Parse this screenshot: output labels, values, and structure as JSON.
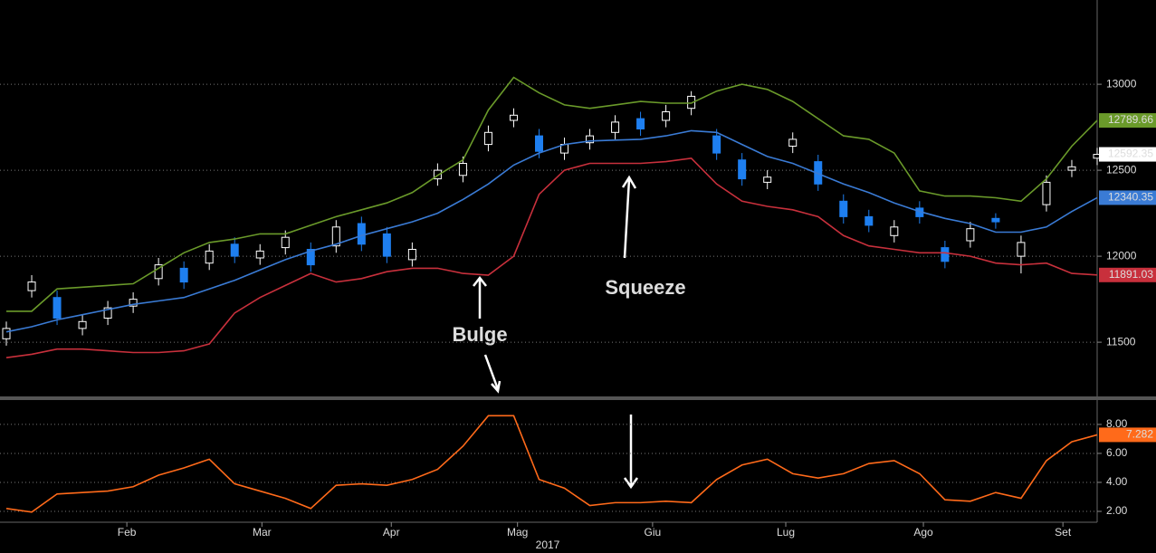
{
  "chart_data": [
    {
      "type": "candlestick",
      "x": [
        1,
        5,
        9,
        13,
        17,
        21,
        25,
        29,
        33,
        37,
        41,
        45,
        49,
        53,
        57,
        61,
        65,
        69,
        73,
        77,
        81,
        85,
        89,
        93,
        97,
        101,
        105,
        109,
        113,
        117,
        121,
        125,
        129,
        133,
        137,
        141,
        145,
        149,
        153,
        157,
        161,
        165,
        169,
        173
      ],
      "xlim": [
        0,
        173
      ],
      "open": [
        11520,
        11800,
        11760,
        11580,
        11640,
        11710,
        11870,
        11930,
        11960,
        12070,
        11990,
        12050,
        12040,
        12060,
        12190,
        12130,
        11980,
        12450,
        12470,
        12650,
        12790,
        12700,
        12600,
        12660,
        12720,
        12800,
        12790,
        12860,
        12700,
        12560,
        12430,
        12640,
        12550,
        12320,
        12230,
        12120,
        12280,
        12050,
        12090,
        12220,
        12000,
        12300,
        12500,
        12570
      ],
      "high": [
        11620,
        11890,
        11800,
        11660,
        11740,
        11790,
        11990,
        11970,
        12070,
        12110,
        12070,
        12150,
        12080,
        12210,
        12230,
        12170,
        12080,
        12540,
        12580,
        12760,
        12860,
        12740,
        12690,
        12740,
        12820,
        12840,
        12880,
        12960,
        12740,
        12600,
        12500,
        12720,
        12590,
        12360,
        12270,
        12210,
        12320,
        12090,
        12200,
        12250,
        12120,
        12470,
        12560,
        12630
      ],
      "low": [
        11480,
        11760,
        11600,
        11540,
        11600,
        11670,
        11830,
        11810,
        11920,
        11960,
        11950,
        12010,
        11910,
        12020,
        12030,
        11960,
        11940,
        12410,
        12430,
        12610,
        12750,
        12570,
        12560,
        12620,
        12680,
        12700,
        12750,
        12820,
        12560,
        12410,
        12390,
        12600,
        12380,
        12190,
        12140,
        12080,
        12190,
        11930,
        12050,
        12160,
        11900,
        12260,
        12460,
        12530
      ],
      "close": [
        11580,
        11850,
        11640,
        11620,
        11700,
        11750,
        11950,
        11850,
        12030,
        12000,
        12030,
        12110,
        11950,
        12170,
        12070,
        12000,
        12040,
        12500,
        12540,
        12720,
        12820,
        12610,
        12650,
        12700,
        12780,
        12740,
        12840,
        12930,
        12600,
        12450,
        12460,
        12680,
        12420,
        12230,
        12180,
        12170,
        12230,
        11970,
        12160,
        12200,
        12080,
        12430,
        12520,
        12592.35
      ],
      "up_color": "#ffffff",
      "down_color": "#1e7ff0",
      "series": [
        {
          "color": "#6a9a2a",
          "values": [
            11680,
            11680,
            11810,
            11820,
            11830,
            11840,
            11930,
            12020,
            12080,
            12100,
            12130,
            12130,
            12180,
            12230,
            12270,
            12310,
            12370,
            12470,
            12560,
            12850,
            13040,
            12950,
            12880,
            12860,
            12880,
            12900,
            12890,
            12890,
            12960,
            13000,
            12970,
            12900,
            12800,
            12700,
            12680,
            12600,
            12380,
            12350,
            12350,
            12340,
            12320,
            12450,
            12640,
            12789.66
          ]
        },
        {
          "color": "#3a7bd5",
          "values": [
            11560,
            11590,
            11630,
            11660,
            11690,
            11720,
            11740,
            11760,
            11810,
            11860,
            11920,
            11980,
            12030,
            12070,
            12120,
            12160,
            12200,
            12250,
            12330,
            12420,
            12530,
            12600,
            12650,
            12670,
            12675,
            12680,
            12700,
            12730,
            12720,
            12650,
            12580,
            12540,
            12480,
            12420,
            12370,
            12310,
            12260,
            12220,
            12190,
            12140,
            12140,
            12170,
            12260,
            12340.35
          ]
        },
        {
          "color": "#c8303c",
          "values": [
            11410,
            11430,
            11460,
            11460,
            11450,
            11440,
            11440,
            11450,
            11490,
            11670,
            11760,
            11830,
            11900,
            11850,
            11870,
            11910,
            11930,
            11930,
            11900,
            11890,
            12000,
            12360,
            12500,
            12540,
            12540,
            12540,
            12550,
            12570,
            12420,
            12320,
            12290,
            12270,
            12230,
            12120,
            12060,
            12040,
            12020,
            12020,
            12000,
            11960,
            11950,
            11960,
            11900,
            11891.03
          ]
        }
      ],
      "ylim": [
        11190,
        13490
      ],
      "yticks": [
        11500,
        12000,
        12500,
        13000
      ],
      "grid": true,
      "annotations": [
        {
          "text": "Bulge",
          "color": "#e8303c"
        },
        {
          "text": "Squeeze",
          "color": "#5a9a22"
        }
      ]
    },
    {
      "type": "line",
      "x": [
        1,
        5,
        9,
        13,
        17,
        21,
        25,
        29,
        33,
        37,
        41,
        45,
        49,
        53,
        57,
        61,
        65,
        69,
        73,
        77,
        81,
        85,
        89,
        93,
        97,
        101,
        105,
        109,
        113,
        117,
        121,
        125,
        129,
        133,
        137,
        141,
        145,
        149,
        153,
        157,
        161,
        165,
        169,
        173
      ],
      "xlim": [
        0,
        173
      ],
      "series": [
        {
          "color": "#ff6a1a",
          "values": [
            2.2,
            1.95,
            3.2,
            3.3,
            3.4,
            3.7,
            4.5,
            5.0,
            5.6,
            3.9,
            3.4,
            2.9,
            2.2,
            3.8,
            3.9,
            3.8,
            4.2,
            4.9,
            6.5,
            8.6,
            8.6,
            4.2,
            3.6,
            2.4,
            2.6,
            2.6,
            2.7,
            2.6,
            4.2,
            5.2,
            5.6,
            4.6,
            4.3,
            4.6,
            5.3,
            5.5,
            4.6,
            2.8,
            2.7,
            3.3,
            2.9,
            5.5,
            6.8,
            7.282
          ]
        }
      ],
      "ylim": [
        1.25,
        9.62
      ],
      "yticks": [
        {
          "value": 2,
          "label": "2.00"
        },
        {
          "value": 4,
          "label": "4.00"
        },
        {
          "value": 6,
          "label": "6.00"
        },
        {
          "value": 8,
          "label": "8.00"
        }
      ],
      "grid": true,
      "xticks": [
        {
          "value": 20,
          "label": "Feb"
        },
        {
          "value": 41.3,
          "label": "Mar"
        },
        {
          "value": 61.7,
          "label": "Apr"
        },
        {
          "value": 81.6,
          "label": "Mag"
        },
        {
          "value": 102.9,
          "label": "Giu"
        },
        {
          "value": 123.9,
          "label": "Lug"
        },
        {
          "value": 145.6,
          "label": "Ago"
        },
        {
          "value": 167.6,
          "label": "Set"
        }
      ],
      "xlabel": "2017"
    }
  ]
}
